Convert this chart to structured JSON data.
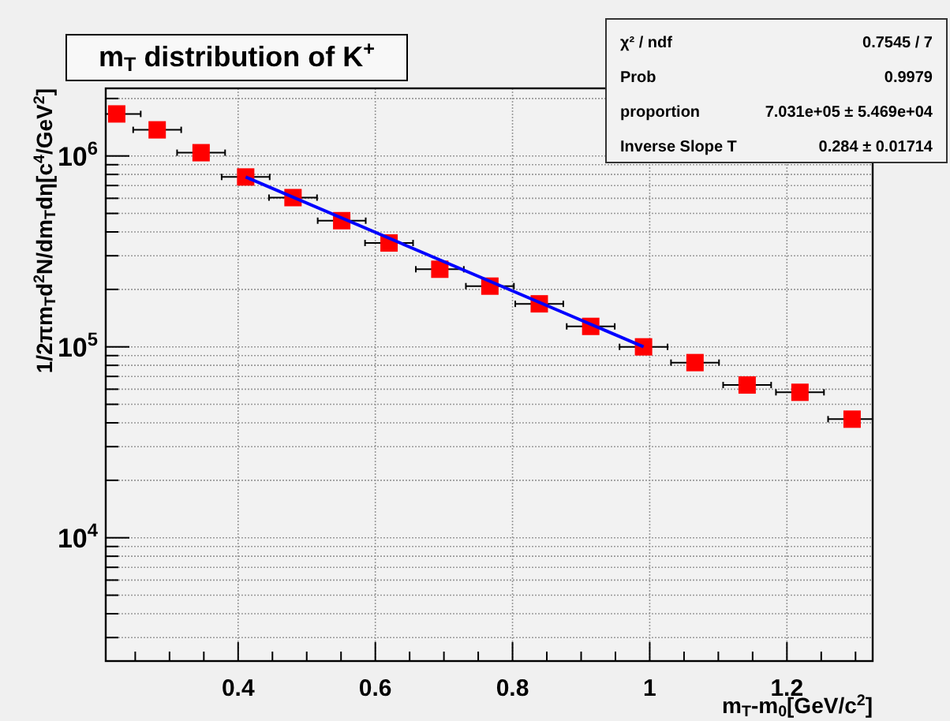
{
  "chart_data": {
    "type": "scatter",
    "title": "m$_{T}$ distribution of K$^{+}$",
    "xlabel": "m$_{T}$-m$_{0}$[GeV/c$^{2}$]",
    "ylabel": "1/2πm$_{T}$d$^{2}$N/dm$_{T}$dη[c$^{4}$/GeV$^{2}$]",
    "annotations": [
      "χ² / ndf",
      "0.7545 / 7",
      "Prob",
      "0.9979",
      "proportion",
      "7.031e+05 ± 5.469e+04",
      "Inverse Slope T",
      "0.284 ± 0.01714"
    ],
    "log": "y",
    "grid": true,
    "xlim": [
      0.207,
      1.325
    ],
    "ylim": [
      2260,
      2260000
    ],
    "xticks": [
      {
        "value": 0.25,
        "label": null
      },
      {
        "value": 0.3,
        "label": null
      },
      {
        "value": 0.35,
        "label": null
      },
      0.4,
      {
        "value": 0.45,
        "label": null
      },
      {
        "value": 0.5,
        "label": null
      },
      {
        "value": 0.55,
        "label": null
      },
      0.6,
      {
        "value": 0.65,
        "label": null
      },
      {
        "value": 0.7,
        "label": null
      },
      {
        "value": 0.75,
        "label": null
      },
      0.8,
      {
        "value": 0.85,
        "label": null
      },
      {
        "value": 0.9,
        "label": null
      },
      {
        "value": 0.95,
        "label": null
      },
      1,
      {
        "value": 1.05,
        "label": null
      },
      {
        "value": 1.1,
        "label": null
      },
      {
        "value": 1.15,
        "label": null
      },
      1.2,
      {
        "value": 1.25,
        "label": null
      },
      {
        "value": 1.3,
        "label": null
      }
    ],
    "yticks": [
      {
        "value": 3000,
        "label": null
      },
      {
        "value": 4000,
        "label": null
      },
      {
        "value": 5000,
        "label": null
      },
      {
        "value": 6000,
        "label": null
      },
      {
        "value": 7000,
        "label": null
      },
      {
        "value": 8000,
        "label": null
      },
      {
        "value": 9000,
        "label": null
      },
      {
        "value": 10000,
        "label": "10$^{4}$"
      },
      {
        "value": 20000,
        "label": null
      },
      {
        "value": 30000,
        "label": null
      },
      {
        "value": 40000,
        "label": null
      },
      {
        "value": 50000,
        "label": null
      },
      {
        "value": 60000,
        "label": null
      },
      {
        "value": 70000,
        "label": null
      },
      {
        "value": 80000,
        "label": null
      },
      {
        "value": 90000,
        "label": null
      },
      {
        "value": 100000,
        "label": "10$^{5}$"
      },
      {
        "value": 200000,
        "label": null
      },
      {
        "value": 300000,
        "label": null
      },
      {
        "value": 400000,
        "label": null
      },
      {
        "value": 500000,
        "label": null
      },
      {
        "value": 600000,
        "label": null
      },
      {
        "value": 700000,
        "label": null
      },
      {
        "value": 800000,
        "label": null
      },
      {
        "value": 900000,
        "label": null
      },
      {
        "value": 1000000,
        "label": "10$^{6}$"
      },
      {
        "value": 2000000,
        "label": null
      }
    ],
    "series": [
      {
        "color": "#ff0000",
        "marker": "square",
        "x": [
          0.223,
          0.282,
          0.346,
          0.411,
          0.48,
          0.551,
          0.62,
          0.694,
          0.767,
          0.839,
          0.914,
          0.991,
          1.066,
          1.142,
          1.219,
          1.295
        ],
        "values": [
          1660000,
          1370000,
          1040000,
          776000,
          605000,
          458000,
          350000,
          255000,
          208000,
          168000,
          128000,
          100000,
          82700,
          63100,
          57800,
          41800
        ],
        "xerrors": [
          [
            0.207,
            0.258
          ],
          0.035,
          0.035,
          0.035,
          0.035,
          0.035,
          0.035,
          0.035,
          0.035,
          0.035,
          0.035,
          0.035,
          0.035,
          0.035,
          0.035,
          [
            1.26,
            1.325
          ]
        ]
      },
      {
        "type": "line",
        "color": "#0000ff",
        "x": [
          0.411,
          0.991
        ],
        "values": [
          776000,
          100000
        ]
      }
    ]
  }
}
